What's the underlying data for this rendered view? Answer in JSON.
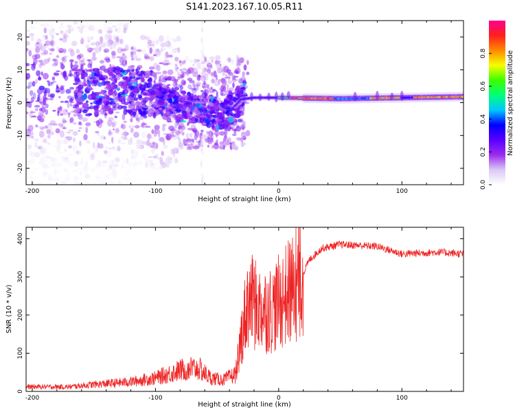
{
  "title": "S141.2023.167.10.05.R11",
  "chart_data": [
    {
      "type": "heatmap",
      "xlabel": "Height of straight line (km)",
      "ylabel": "Frequency (Hz)",
      "xlim": [
        -205,
        150
      ],
      "ylim": [
        -25,
        25
      ],
      "xticks": [
        -200,
        -100,
        0,
        100
      ],
      "yticks": [
        -20,
        -10,
        0,
        10,
        20
      ],
      "colorbar": {
        "label": "Normalized spectral amplitude",
        "range": [
          0,
          1
        ],
        "ticks": [
          0.0,
          0.2,
          0.4,
          0.6,
          0.8
        ],
        "colormap": [
          "#ffffff",
          "#dcc8f5",
          "#9a2cf0",
          "#5a00ff",
          "#0000ff",
          "#00c8ff",
          "#00ff7a",
          "#3cff00",
          "#f5ff00",
          "#ff8a00",
          "#ff1e1e",
          "#ff0090"
        ]
      },
      "ridge": [
        {
          "x": -200,
          "f": 5
        },
        {
          "x": -150,
          "f": 3
        },
        {
          "x": -120,
          "f": 4
        },
        {
          "x": -100,
          "f": 2
        },
        {
          "x": -80,
          "f": -1
        },
        {
          "x": -60,
          "f": -2.5
        },
        {
          "x": -45,
          "f": -3.5
        },
        {
          "x": -35,
          "f": -1
        },
        {
          "x": -30,
          "f": 1
        },
        {
          "x": -20,
          "f": 1.5
        },
        {
          "x": 0,
          "f": 1.5
        },
        {
          "x": 50,
          "f": 1.2
        },
        {
          "x": 100,
          "f": 1.5
        },
        {
          "x": 150,
          "f": 1.8
        }
      ]
    },
    {
      "type": "line",
      "xlabel": "Height of straight line (km)",
      "ylabel": "SNR (10 * v/v)",
      "xlim": [
        -205,
        150
      ],
      "ylim": [
        0,
        430
      ],
      "xticks": [
        -200,
        -100,
        0,
        100
      ],
      "yticks": [
        0,
        100,
        200,
        300,
        400
      ],
      "color": "#ee2222",
      "trend": [
        {
          "x": -205,
          "y": 12
        },
        {
          "x": -170,
          "y": 12
        },
        {
          "x": -150,
          "y": 18
        },
        {
          "x": -120,
          "y": 25
        },
        {
          "x": -100,
          "y": 35
        },
        {
          "x": -85,
          "y": 50
        },
        {
          "x": -75,
          "y": 60
        },
        {
          "x": -65,
          "y": 60
        },
        {
          "x": -55,
          "y": 35
        },
        {
          "x": -45,
          "y": 30
        },
        {
          "x": -35,
          "y": 45
        },
        {
          "x": -30,
          "y": 150
        },
        {
          "x": -25,
          "y": 240
        },
        {
          "x": -15,
          "y": 215
        },
        {
          "x": -5,
          "y": 215
        },
        {
          "x": 5,
          "y": 250
        },
        {
          "x": 15,
          "y": 280
        },
        {
          "x": 20,
          "y": 310
        },
        {
          "x": 25,
          "y": 345
        },
        {
          "x": 35,
          "y": 375
        },
        {
          "x": 50,
          "y": 385
        },
        {
          "x": 80,
          "y": 380
        },
        {
          "x": 100,
          "y": 360
        },
        {
          "x": 130,
          "y": 365
        },
        {
          "x": 150,
          "y": 360
        }
      ]
    }
  ]
}
